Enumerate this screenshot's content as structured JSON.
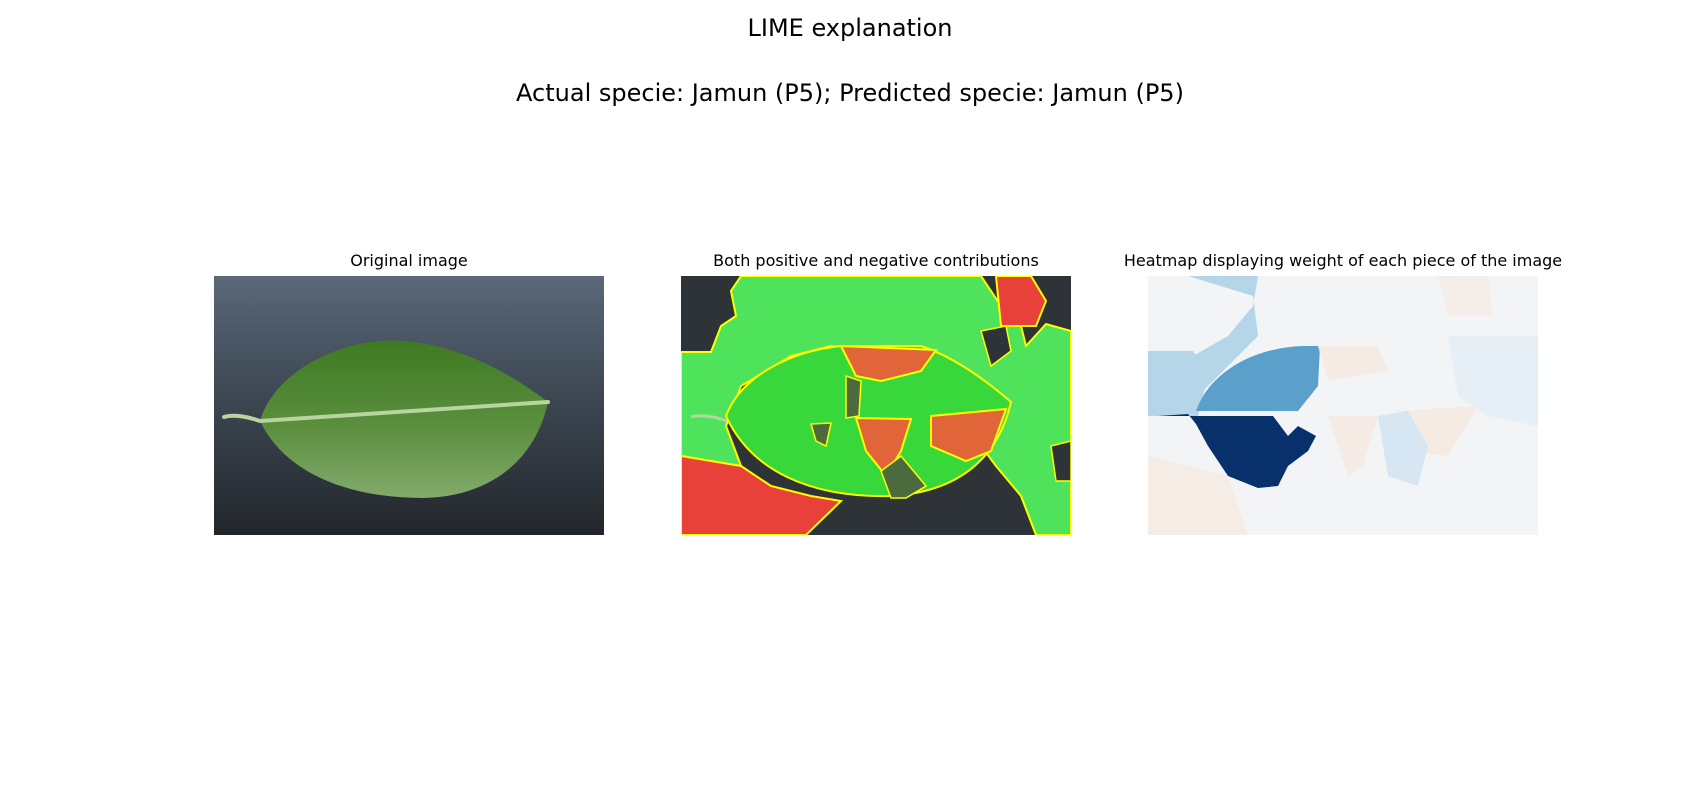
{
  "figure": {
    "title": "LIME explanation",
    "subtitle": "Actual specie: Jamun (P5); Predicted specie: Jamun (P5)"
  },
  "panels": [
    {
      "title": "Original image",
      "content": "leaf-photo"
    },
    {
      "title": "Both positive and negative contributions",
      "content": "lime-segment-overlay"
    },
    {
      "title": "Heatmap displaying weight of each piece of the image",
      "content": "segment-weight-heatmap"
    }
  ],
  "colors": {
    "background_photo": "#3b4550",
    "leaf_green": "#5a8a3c",
    "positive": "#3ee04a",
    "negative": "#e8413a",
    "boundary": "#ffff00",
    "heat_strong_positive": "#08306b",
    "heat_positive": "#5aa0ca",
    "heat_weak": "#d6e6f2",
    "heat_neutral": "#f2f4f6",
    "heat_negative": "#f7e9e1"
  }
}
